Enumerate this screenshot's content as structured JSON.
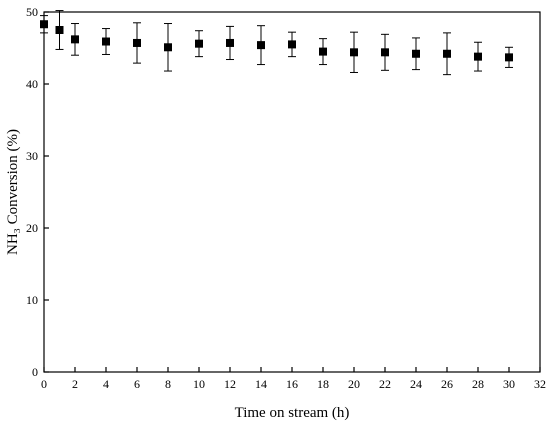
{
  "chart_data": {
    "type": "scatter",
    "xlabel": "Time on stream (h)",
    "ylabel": "NH₃ Conversion (%)",
    "xlim": [
      0,
      32
    ],
    "ylim": [
      0,
      50
    ],
    "xticks": [
      "0",
      "2",
      "4",
      "6",
      "8",
      "10",
      "12",
      "14",
      "16",
      "18",
      "20",
      "22",
      "24",
      "26",
      "28",
      "30",
      "32"
    ],
    "yticks": [
      "0",
      "10",
      "20",
      "30",
      "40",
      "50"
    ],
    "grid": false,
    "marker": "filled-square",
    "marker_color": "#000000",
    "points": [
      {
        "x": 0,
        "y": 48.3,
        "err": 1.2
      },
      {
        "x": 1,
        "y": 47.5,
        "err": 2.7
      },
      {
        "x": 2,
        "y": 46.2,
        "err": 2.2
      },
      {
        "x": 4,
        "y": 45.9,
        "err": 1.8
      },
      {
        "x": 6,
        "y": 45.7,
        "err": 2.8
      },
      {
        "x": 8,
        "y": 45.1,
        "err": 3.3
      },
      {
        "x": 10,
        "y": 45.6,
        "err": 1.8
      },
      {
        "x": 12,
        "y": 45.7,
        "err": 2.3
      },
      {
        "x": 14,
        "y": 45.4,
        "err": 2.7
      },
      {
        "x": 16,
        "y": 45.5,
        "err": 1.7
      },
      {
        "x": 18,
        "y": 44.5,
        "err": 1.8
      },
      {
        "x": 20,
        "y": 44.4,
        "err": 2.8
      },
      {
        "x": 22,
        "y": 44.4,
        "err": 2.5
      },
      {
        "x": 24,
        "y": 44.2,
        "err": 2.2
      },
      {
        "x": 26,
        "y": 44.2,
        "err": 2.9
      },
      {
        "x": 28,
        "y": 43.8,
        "err": 2.0
      },
      {
        "x": 30,
        "y": 43.7,
        "err": 1.4
      }
    ]
  }
}
